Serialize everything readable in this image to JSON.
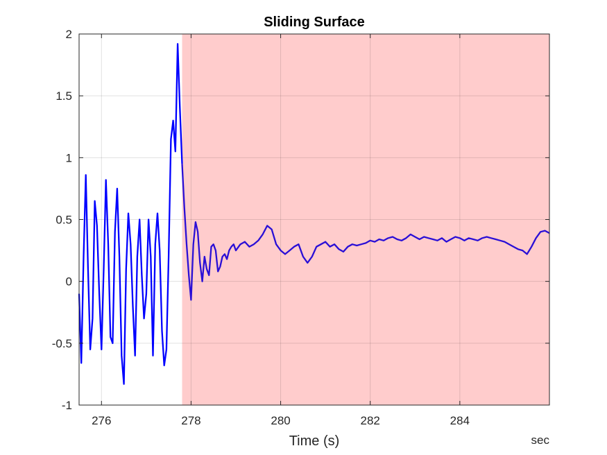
{
  "chart_data": {
    "type": "line",
    "title": "Sliding Surface",
    "xlabel": "Time (s)",
    "ylabel": "",
    "x_unit_label": "sec",
    "xlim": [
      275.5,
      286.0
    ],
    "ylim": [
      -1,
      2
    ],
    "x_ticks": [
      276,
      278,
      280,
      282,
      284
    ],
    "y_ticks": [
      -1,
      -0.5,
      0,
      0.5,
      1,
      1.5,
      2
    ],
    "x_tick_labels": [
      "276",
      "278",
      "280",
      "282",
      "284"
    ],
    "y_tick_labels": [
      "-1",
      "-0.5",
      "0",
      "0.5",
      "1",
      "1.5",
      "2"
    ],
    "grid": true,
    "highlight_region": {
      "x_start": 277.8,
      "x_end": 286.0,
      "color": "#ffcccc"
    },
    "series": [
      {
        "color_before": "#0000ff",
        "color_after": "#2a0fd6",
        "x": [
          275.5,
          275.55,
          275.6,
          275.65,
          275.7,
          275.75,
          275.8,
          275.85,
          275.9,
          275.95,
          276.0,
          276.05,
          276.1,
          276.15,
          276.2,
          276.25,
          276.3,
          276.35,
          276.4,
          276.45,
          276.5,
          276.55,
          276.6,
          276.65,
          276.7,
          276.75,
          276.8,
          276.85,
          276.9,
          276.95,
          277.0,
          277.05,
          277.1,
          277.15,
          277.2,
          277.25,
          277.3,
          277.35,
          277.4,
          277.45,
          277.5,
          277.55,
          277.6,
          277.65,
          277.7,
          277.75,
          277.8,
          277.85,
          277.9,
          277.95,
          278.0,
          278.05,
          278.1,
          278.15,
          278.2,
          278.25,
          278.3,
          278.35,
          278.4,
          278.45,
          278.5,
          278.55,
          278.6,
          278.65,
          278.7,
          278.75,
          278.8,
          278.85,
          278.9,
          278.95,
          279.0,
          279.1,
          279.2,
          279.3,
          279.4,
          279.5,
          279.6,
          279.7,
          279.8,
          279.9,
          280.0,
          280.1,
          280.2,
          280.3,
          280.4,
          280.5,
          280.6,
          280.7,
          280.8,
          280.9,
          281.0,
          281.1,
          281.2,
          281.3,
          281.4,
          281.5,
          281.6,
          281.7,
          281.8,
          281.9,
          282.0,
          282.1,
          282.2,
          282.3,
          282.4,
          282.5,
          282.6,
          282.7,
          282.8,
          282.9,
          283.0,
          283.1,
          283.2,
          283.3,
          283.4,
          283.5,
          283.6,
          283.7,
          283.8,
          283.9,
          284.0,
          284.1,
          284.2,
          284.3,
          284.4,
          284.5,
          284.6,
          284.7,
          284.8,
          284.9,
          285.0,
          285.1,
          285.2,
          285.3,
          285.4,
          285.5,
          285.6,
          285.7,
          285.8,
          285.9,
          286.0
        ],
        "y": [
          -0.1,
          -0.66,
          0.2,
          0.86,
          0.1,
          -0.55,
          -0.3,
          0.65,
          0.45,
          -0.1,
          -0.55,
          0.1,
          0.82,
          0.3,
          -0.45,
          -0.5,
          0.4,
          0.75,
          0.2,
          -0.6,
          -0.83,
          0.1,
          0.55,
          0.3,
          -0.2,
          -0.6,
          0.2,
          0.5,
          0.05,
          -0.3,
          -0.1,
          0.5,
          0.2,
          -0.6,
          0.3,
          0.55,
          0.25,
          -0.4,
          -0.68,
          -0.55,
          0.2,
          1.15,
          1.3,
          1.05,
          1.92,
          1.4,
          0.95,
          0.6,
          0.3,
          0.05,
          -0.15,
          0.3,
          0.48,
          0.4,
          0.15,
          0.0,
          0.2,
          0.1,
          0.05,
          0.28,
          0.3,
          0.25,
          0.08,
          0.12,
          0.2,
          0.22,
          0.18,
          0.25,
          0.28,
          0.3,
          0.25,
          0.3,
          0.32,
          0.28,
          0.3,
          0.33,
          0.38,
          0.45,
          0.42,
          0.3,
          0.25,
          0.22,
          0.25,
          0.28,
          0.3,
          0.2,
          0.15,
          0.2,
          0.28,
          0.3,
          0.32,
          0.28,
          0.3,
          0.26,
          0.24,
          0.28,
          0.3,
          0.29,
          0.3,
          0.31,
          0.33,
          0.32,
          0.34,
          0.33,
          0.35,
          0.36,
          0.34,
          0.33,
          0.35,
          0.38,
          0.36,
          0.34,
          0.36,
          0.35,
          0.34,
          0.33,
          0.35,
          0.32,
          0.34,
          0.36,
          0.35,
          0.33,
          0.35,
          0.34,
          0.33,
          0.35,
          0.36,
          0.35,
          0.34,
          0.33,
          0.32,
          0.3,
          0.28,
          0.26,
          0.25,
          0.22,
          0.28,
          0.35,
          0.4,
          0.41,
          0.39
        ]
      }
    ]
  }
}
